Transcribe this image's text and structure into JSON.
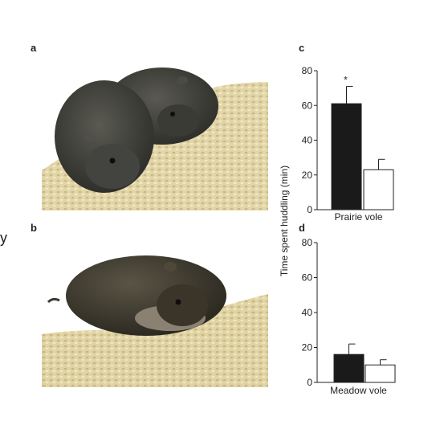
{
  "panels": {
    "a": "a",
    "b": "b",
    "c": "c",
    "d": "d"
  },
  "stray_char": "y",
  "colors": {
    "bar_dark": "#1a1a1a",
    "bar_light": "#ffffff",
    "substrate": "#dccf9e",
    "fur": "#3e3e36"
  },
  "chart_data": [
    {
      "type": "bar",
      "panel": "c",
      "xlabel": "Prairie vole",
      "ylabel": "Time spent huddling (min)",
      "ylim": [
        0,
        80
      ],
      "yticks": [
        0,
        20,
        40,
        60,
        80
      ],
      "bars": [
        {
          "value": 61,
          "error": 10,
          "fill": "dark",
          "annotation": "*"
        },
        {
          "value": 23,
          "error": 6,
          "fill": "light",
          "annotation": ""
        }
      ]
    },
    {
      "type": "bar",
      "panel": "d",
      "xlabel": "Meadow vole",
      "ylabel": "Time spent huddling (min)",
      "ylim": [
        0,
        80
      ],
      "yticks": [
        0,
        20,
        40,
        60,
        80
      ],
      "bars": [
        {
          "value": 16,
          "error": 6,
          "fill": "dark",
          "annotation": ""
        },
        {
          "value": 10,
          "error": 3,
          "fill": "light",
          "annotation": ""
        }
      ]
    }
  ]
}
